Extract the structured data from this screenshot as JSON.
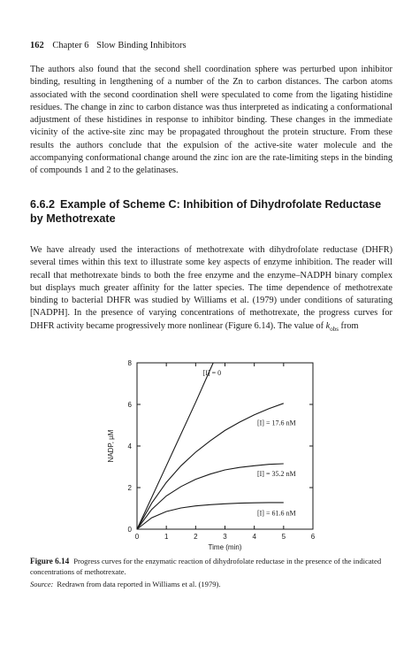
{
  "header": {
    "page_number": "162",
    "chapter": "Chapter 6",
    "chapter_title": "Slow Binding Inhibitors"
  },
  "paragraph1": "The authors also found that the second shell coordination sphere was perturbed upon inhibitor binding, resulting in lengthening of a number of the Zn to carbon distances. The carbon atoms associated with the second coordination shell were speculated to come from the ligating histidine residues. The change in zinc to carbon distance was thus interpreted as indicating a conformational adjustment of these histidines in response to inhibitor binding. These changes in the immediate vicinity of the active-site zinc may be propagated throughout the protein structure. From these results the authors conclude that the expulsion of the active-site water molecule and the accompanying conformational change around the zinc ion are the rate-limiting steps in the binding of compounds 1 and 2 to the gelatinases.",
  "section": {
    "number": "6.6.2",
    "title": "Example of Scheme C: Inhibition of Dihydrofolate Reductase by Methotrexate"
  },
  "paragraph2": {
    "text": "We have already used the interactions of methotrexate with dihydrofolate reductase (DHFR) several times within this text to illustrate some key aspects of enzyme inhibition. The reader will recall that methotrexate binds to both the free enzyme and the enzyme–NADPH binary complex but displays much greater affinity for the latter species. The time dependence of methotrexate binding to bacterial DHFR was studied by Williams et al. (1979) under conditions of saturating [NADPH]. In the presence of varying concentrations of methotrexate, the progress curves for DHFR activity became progressively more nonlinear (Figure 6.14). The value of ",
    "k_symbol": "k",
    "k_subscript": "obs",
    "tail": " from"
  },
  "figure": {
    "label": "Figure 6.14",
    "caption": "Progress curves for the enzymatic reaction of dihydrofolate reductase in the presence of the indicated concentrations of methotrexate.",
    "source_label": "Source:",
    "source_text": "Redrawn from data reported in Williams et al. (1979)."
  },
  "chart_data": {
    "type": "line",
    "title": "",
    "xlabel": "Time (min)",
    "ylabel": "NADP, µM",
    "xlim": [
      0,
      6
    ],
    "ylim": [
      0,
      8
    ],
    "xticks": [
      0,
      1,
      2,
      3,
      4,
      5,
      6
    ],
    "yticks": [
      0,
      2,
      4,
      6,
      8
    ],
    "grid": false,
    "series": [
      {
        "name": "[I] = 0",
        "x": [
          0,
          1,
          2,
          2.6
        ],
        "y": [
          0,
          3.05,
          6.1,
          8.0
        ]
      },
      {
        "name": "[I] = 17.6 nM",
        "x": [
          0,
          0.5,
          1,
          1.5,
          2,
          2.5,
          3,
          3.5,
          4,
          4.5,
          5
        ],
        "y": [
          0,
          1.25,
          2.25,
          3.05,
          3.7,
          4.25,
          4.75,
          5.15,
          5.5,
          5.8,
          6.05
        ]
      },
      {
        "name": "[I] = 35.2 nM",
        "x": [
          0,
          0.5,
          1,
          1.5,
          2,
          2.5,
          3,
          3.5,
          4,
          4.5,
          5
        ],
        "y": [
          0,
          0.95,
          1.6,
          2.05,
          2.4,
          2.65,
          2.85,
          2.97,
          3.05,
          3.12,
          3.15
        ]
      },
      {
        "name": "[I] = 61.6 nM",
        "x": [
          0,
          0.5,
          1,
          1.5,
          2,
          2.5,
          3,
          3.5,
          4,
          4.5,
          5
        ],
        "y": [
          0,
          0.55,
          0.85,
          1.02,
          1.12,
          1.18,
          1.22,
          1.25,
          1.27,
          1.28,
          1.28
        ]
      }
    ]
  }
}
